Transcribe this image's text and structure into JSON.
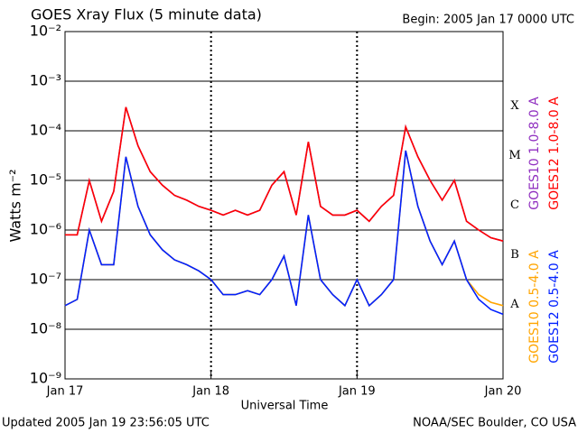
{
  "chart_data": {
    "type": "line",
    "title": "GOES Xray Flux (5 minute data)",
    "subtitle": "Begin:  2005 Jan 17 0000 UTC",
    "y_label": "Watts m⁻²",
    "x_label": "Universal Time",
    "footer_left": "Updated 2005 Jan 19 23:56:05 UTC",
    "footer_right": "NOAA/SEC Boulder, CO USA",
    "annotations": [
      "X",
      "M",
      "C",
      "B",
      "A"
    ],
    "log_scale": true,
    "grid": true,
    "x": [
      0,
      2,
      4,
      6,
      8,
      10,
      12,
      14,
      16,
      18,
      20,
      22,
      24,
      26,
      28,
      30,
      32,
      34,
      36,
      38,
      40,
      42,
      44,
      46,
      48,
      50,
      52,
      54,
      56,
      58,
      60,
      62,
      64,
      66,
      68,
      70,
      72
    ],
    "xlim": [
      0,
      72
    ],
    "xticks": [
      {
        "value": 0,
        "label": "Jan 17"
      },
      {
        "value": 24,
        "label": "Jan 18"
      },
      {
        "value": 48,
        "label": "Jan 19"
      },
      {
        "value": 72,
        "label": "Jan 20"
      }
    ],
    "ylim": [
      1e-09,
      0.01
    ],
    "yticks": [
      {
        "value": 0.01,
        "label": "10⁻²"
      },
      {
        "value": 0.001,
        "label": "10⁻³"
      },
      {
        "value": 0.0001,
        "label": "10⁻⁴"
      },
      {
        "value": 1e-05,
        "label": "10⁻⁵"
      },
      {
        "value": 1e-06,
        "label": "10⁻⁶"
      },
      {
        "value": 1e-07,
        "label": "10⁻⁷"
      },
      {
        "value": 1e-08,
        "label": "10⁻⁸"
      },
      {
        "value": 1e-09,
        "label": "10⁻⁹"
      }
    ],
    "series": [
      {
        "name": "GOES10 1.0-8.0 A",
        "color": "#9030c0",
        "values": [
          8e-07,
          8e-07,
          1e-05,
          1.5e-06,
          6e-06,
          0.0003,
          5e-05,
          1.5e-05,
          8e-06,
          5e-06,
          4e-06,
          3e-06,
          2.5e-06,
          2e-06,
          2.5e-06,
          2e-06,
          2.5e-06,
          8e-06,
          1.5e-05,
          2e-06,
          6e-05,
          3e-06,
          2e-06,
          2e-06,
          2.5e-06,
          1.5e-06,
          3e-06,
          5e-06,
          0.00012,
          3e-05,
          1e-05,
          4e-06,
          1e-05,
          1.5e-06,
          1e-06,
          7e-07,
          6e-07
        ]
      },
      {
        "name": "GOES12 1.0-8.0 A",
        "color": "#ff0000",
        "values": [
          8e-07,
          8e-07,
          1e-05,
          1.5e-06,
          6e-06,
          0.0003,
          5e-05,
          1.5e-05,
          8e-06,
          5e-06,
          4e-06,
          3e-06,
          2.5e-06,
          2e-06,
          2.5e-06,
          2e-06,
          2.5e-06,
          8e-06,
          1.5e-05,
          2e-06,
          6e-05,
          3e-06,
          2e-06,
          2e-06,
          2.5e-06,
          1.5e-06,
          3e-06,
          5e-06,
          0.00012,
          3e-05,
          1e-05,
          4e-06,
          1e-05,
          1.5e-06,
          1e-06,
          7e-07,
          6e-07
        ]
      },
      {
        "name": "GOES10 0.5-4.0 A",
        "color": "#ffa500",
        "values": [
          3e-08,
          4e-08,
          1e-06,
          2e-07,
          2e-07,
          3e-05,
          3e-06,
          8e-07,
          4e-07,
          2.5e-07,
          2e-07,
          1.5e-07,
          1e-07,
          5e-08,
          5e-08,
          6e-08,
          5e-08,
          1e-07,
          3e-07,
          3e-08,
          2e-06,
          1e-07,
          5e-08,
          3e-08,
          1e-07,
          3e-08,
          5e-08,
          1e-07,
          4e-05,
          3e-06,
          6e-07,
          2e-07,
          6e-07,
          1e-07,
          5e-08,
          3.5e-08,
          3e-08
        ]
      },
      {
        "name": "GOES12 0.5-4.0 A",
        "color": "#0020ff",
        "values": [
          3e-08,
          4e-08,
          1e-06,
          2e-07,
          2e-07,
          3e-05,
          3e-06,
          8e-07,
          4e-07,
          2.5e-07,
          2e-07,
          1.5e-07,
          1e-07,
          5e-08,
          5e-08,
          6e-08,
          5e-08,
          1e-07,
          3e-07,
          3e-08,
          2e-06,
          1e-07,
          5e-08,
          3e-08,
          1e-07,
          3e-08,
          5e-08,
          1e-07,
          4e-05,
          3e-06,
          6e-07,
          2e-07,
          6e-07,
          1e-07,
          4e-08,
          2.5e-08,
          2e-08
        ]
      }
    ]
  }
}
